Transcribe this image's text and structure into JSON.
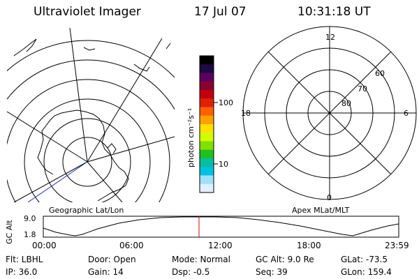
{
  "header": {
    "instrument": "Ultraviolet Imager",
    "date": "17 Jul 07",
    "time": "10:31:18 UT"
  },
  "left_map": {
    "label": "Geographic Lat/Lon"
  },
  "color_bar": {
    "unit_label": "photon cm⁻²s⁻¹",
    "ticks": [
      "100",
      "10"
    ],
    "colors": [
      "#000000",
      "#1e0a40",
      "#5a0060",
      "#8a0030",
      "#c00010",
      "#e02000",
      "#ff6000",
      "#ffa000",
      "#ffe000",
      "#d0ff00",
      "#80e000",
      "#20c020",
      "#00c0a0",
      "#00c0e0",
      "#a0e0ff",
      "#e0f0ff"
    ]
  },
  "right_polar": {
    "label": "Apex MLat/MLT",
    "clock_labels": {
      "top": "12",
      "left": "18",
      "right": "6",
      "bottom": "0"
    },
    "ring_labels": [
      "60",
      "70",
      "80"
    ]
  },
  "altitude_plot": {
    "ylabel": "GC Alt",
    "ytick_top": "9.0",
    "ytick_bottom": "1.8",
    "xticks": [
      "00:00",
      "06:00",
      "12:00",
      "18:00",
      "23:59"
    ]
  },
  "info": {
    "flt": "Flt: LBHL",
    "ip": "IP: 36.0",
    "door": "Door: Open",
    "gain": "Gain: 14",
    "mode": "Mode: Normal",
    "dsp": "Dsp:   -0.5",
    "gcalt": "GC Alt: 9.0 Re",
    "seq": "Seq: 39",
    "glat": "GLat: -73.5",
    "glon": "GLon: 159.4"
  }
}
